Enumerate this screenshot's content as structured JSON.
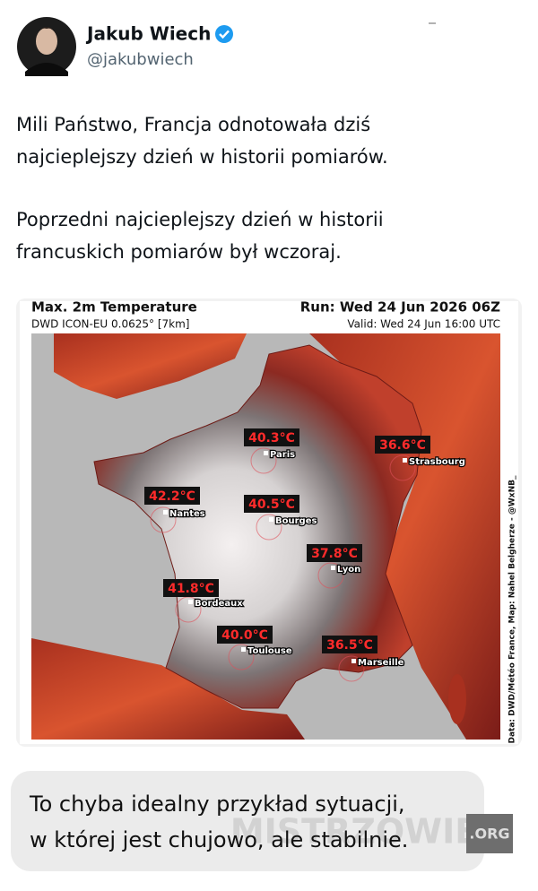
{
  "author": {
    "name": "Jakub Wiech",
    "handle": "@jakubwiech"
  },
  "tweet": {
    "paragraphs": [
      [
        "Mili Państwo, Francja odnotowała dziś",
        "najcieplejszy dzień w historii pomiarów."
      ],
      [
        "Poprzedni najcieplejszy dzień w historii",
        "francuskich pomiarów był wczoraj."
      ]
    ]
  },
  "map": {
    "title": "Max. 2m Temperature",
    "model": "DWD ICON-EU 0.0625° [7km]",
    "run": "Run: Wed 24 Jun 2026 06Z",
    "valid": "Valid: Wed 24 Jun 16:00 UTC",
    "credit": "Data: DWD/Météo France, Map: Nahel Belgherze - @WxNB_",
    "cities": [
      {
        "name": "Paris",
        "temp": "40.3°C"
      },
      {
        "name": "Strasbourg",
        "temp": "36.6°C"
      },
      {
        "name": "Nantes",
        "temp": "42.2°C"
      },
      {
        "name": "Bourges",
        "temp": "40.5°C"
      },
      {
        "name": "Lyon",
        "temp": "37.8°C"
      },
      {
        "name": "Bordeaux",
        "temp": "41.8°C"
      },
      {
        "name": "Toulouse",
        "temp": "40.0°C"
      },
      {
        "name": "Marseille",
        "temp": "36.5°C"
      }
    ]
  },
  "caption": {
    "lines": [
      "To chyba idealny przykład sytuacji,",
      "w której jest chujowo, ale stabilnie."
    ]
  },
  "watermark": {
    "text": "MISTRZOWIE",
    "suffix": ".ORG"
  }
}
